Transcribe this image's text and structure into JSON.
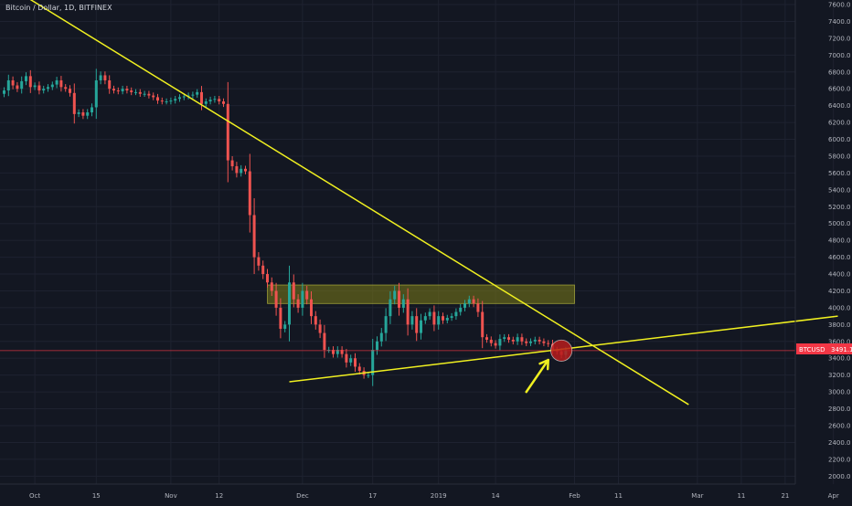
{
  "header": {
    "title": "Bitcoin / Dollar, 1D, BITFINEX"
  },
  "colors": {
    "background": "#131722",
    "grid": "#1e2230",
    "up": "#26a69a",
    "down": "#ef5350",
    "trendline": "#f0f020",
    "zone_fill": "#7c7c18",
    "zone_border": "#c8c840",
    "price_line": "#f23645",
    "axis_text": "#b2b5be"
  },
  "price_badge": {
    "symbol": "BTCUSD",
    "value": "3491.1"
  },
  "chart_data": {
    "type": "candlestick",
    "title": "Bitcoin / Dollar, 1D, BITFINEX",
    "y_axis": {
      "side": "right",
      "range": [
        1880,
        7680
      ],
      "tick_labels": [
        "2000.0",
        "2200.0",
        "2400.0",
        "2600.0",
        "2800.0",
        "3000.0",
        "3200.0",
        "3400.0",
        "3600.0",
        "3800.0",
        "4000.0",
        "4200.0",
        "4400.0",
        "4600.0",
        "4800.0",
        "5000.0",
        "5200.0",
        "5400.0",
        "5600.0",
        "5800.0",
        "6000.0",
        "6200.0",
        "6400.0",
        "6600.0",
        "6800.0",
        "7000.0",
        "7200.0",
        "7400.0",
        "7600.0"
      ]
    },
    "x_axis": {
      "range": [
        "2018-09-24",
        "2019-04-08"
      ],
      "ticks": [
        {
          "label": "Oct",
          "date": "2018-10-01"
        },
        {
          "label": "15",
          "date": "2018-10-15"
        },
        {
          "label": "Nov",
          "date": "2018-11-01"
        },
        {
          "label": "12",
          "date": "2018-11-12"
        },
        {
          "label": "Dec",
          "date": "2018-12-01"
        },
        {
          "label": "17",
          "date": "2018-12-17"
        },
        {
          "label": "2019",
          "date": "2019-01-01"
        },
        {
          "label": "14",
          "date": "2019-01-14"
        },
        {
          "label": "Feb",
          "date": "2019-02-01"
        },
        {
          "label": "11",
          "date": "2019-02-11"
        },
        {
          "label": "Mar",
          "date": "2019-03-01"
        },
        {
          "label": "11",
          "date": "2019-03-11"
        },
        {
          "label": "21",
          "date": "2019-03-21"
        },
        {
          "label": "Apr",
          "date": "2019-04-01"
        }
      ]
    },
    "grid": true,
    "last_price": 3491.1,
    "series": [
      {
        "name": "BTCUSD",
        "segments": [
          {
            "from": "2018-09-24",
            "to": "2018-10-09",
            "closes": [
              6580,
              6700,
              6640,
              6600,
              6690,
              6750,
              6620,
              6640,
              6580,
              6600,
              6620,
              6650,
              6700,
              6620,
              6600,
              6550
            ]
          },
          {
            "from": "2018-10-10",
            "to": "2018-10-14",
            "closes": [
              6300,
              6320,
              6280,
              6320,
              6380
            ]
          },
          {
            "from": "2018-10-15",
            "to": "2018-10-18",
            "closes": [
              6700,
              6760,
              6700,
              6600
            ]
          },
          {
            "from": "2018-10-19",
            "to": "2018-11-05",
            "closes": [
              6580,
              6570,
              6600,
              6580,
              6560,
              6560,
              6540,
              6540,
              6520,
              6500,
              6460,
              6450,
              6450,
              6460,
              6480,
              6500,
              6510,
              6520
            ]
          },
          {
            "from": "2018-11-06",
            "to": "2018-11-13",
            "closes": [
              6530,
              6560,
              6420,
              6450,
              6470,
              6480,
              6450,
              6420
            ]
          },
          {
            "from": "2018-11-14",
            "to": "2018-11-20",
            "closes": [
              5750,
              5680,
              5600,
              5650,
              5620,
              5100,
              4600
            ]
          },
          {
            "from": "2018-11-21",
            "to": "2018-11-30",
            "closes": [
              4500,
              4400,
              4300,
              4200,
              4000,
              3750,
              3800,
              4300,
              4100,
              4000
            ]
          },
          {
            "from": "2018-12-01",
            "to": "2018-12-16",
            "closes": [
              4200,
              4100,
              3900,
              3800,
              3700,
              3500,
              3500,
              3450,
              3500,
              3450,
              3350,
              3400,
              3300,
              3250,
              3200,
              3200
            ]
          },
          {
            "from": "2018-12-17",
            "to": "2018-12-31",
            "closes": [
              3500,
              3600,
              3700,
              3900,
              4100,
              4200,
              4000,
              4100,
              3800,
              3900,
              3700,
              3850,
              3900,
              3950,
              3800
            ]
          },
          {
            "from": "2019-01-01",
            "to": "2019-01-19",
            "closes": [
              3900,
              3850,
              3880,
              3900,
              3950,
              4000,
              4050,
              4100,
              4050,
              3950,
              3650,
              3620,
              3580,
              3550,
              3630,
              3650,
              3620,
              3600,
              3650
            ]
          },
          {
            "from": "2019-01-20",
            "to": "2019-01-30",
            "closes": [
              3600,
              3580,
              3600,
              3620,
              3600,
              3580,
              3570,
              3500,
              3480,
              3440,
              3491.1
            ]
          }
        ]
      }
    ],
    "annotations": [
      {
        "type": "trendline",
        "label": "descending resistance",
        "points": [
          [
            "2018-09-25",
            7820
          ],
          [
            "2019-02-27",
            2850
          ]
        ]
      },
      {
        "type": "trendline",
        "label": "ascending support",
        "points": [
          [
            "2018-11-28",
            3120
          ],
          [
            "2019-04-02",
            3900
          ]
        ]
      },
      {
        "type": "zone",
        "label": "resistance zone",
        "x": [
          "2018-11-23",
          "2019-02-01"
        ],
        "y": [
          4050,
          4270
        ]
      },
      {
        "type": "circle",
        "label": "apex",
        "center": [
          "2019-01-29",
          3491
        ],
        "radius_days": 2
      },
      {
        "type": "arrow",
        "label": "pointer",
        "from": [
          "2019-01-21",
          3000
        ],
        "to": [
          "2019-01-26",
          3380
        ]
      }
    ]
  }
}
